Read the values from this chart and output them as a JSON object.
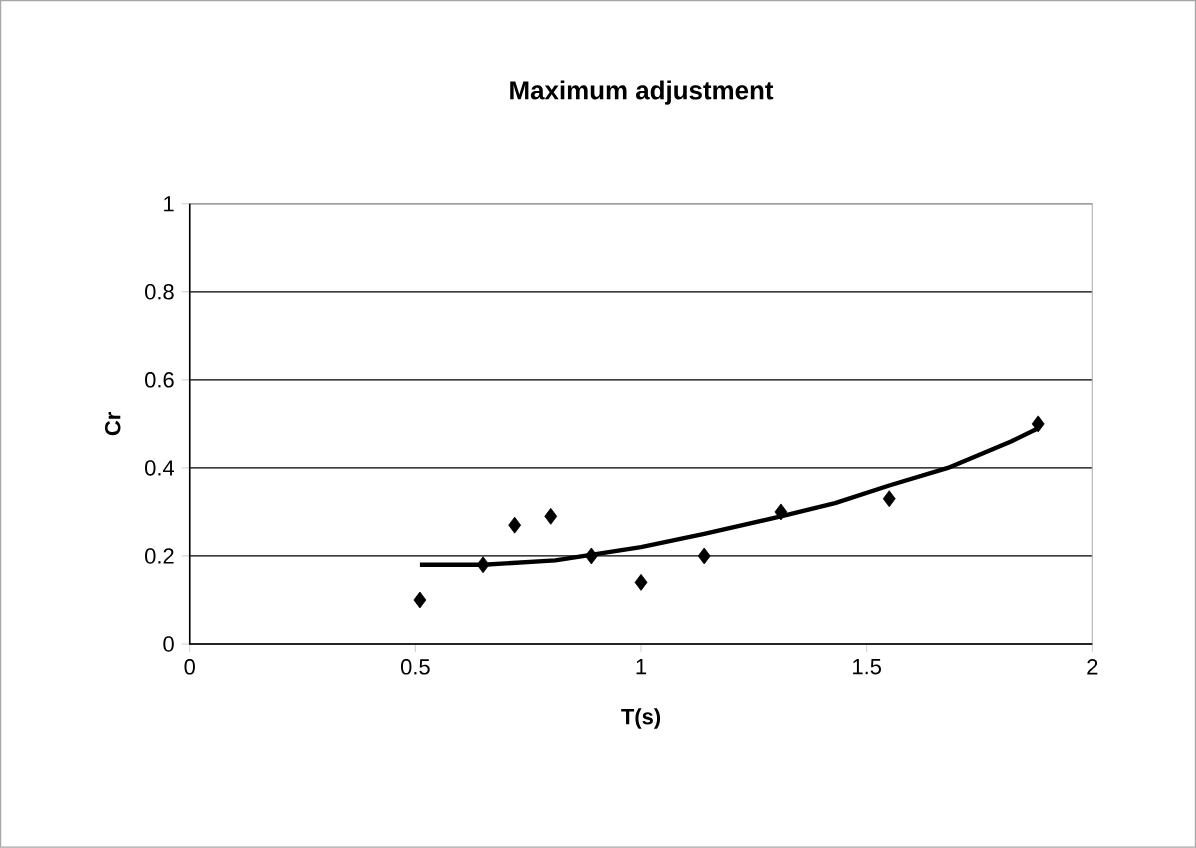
{
  "chart_data": {
    "type": "scatter",
    "title": "Maximum adjustment",
    "xlabel": "T(s)",
    "ylabel": "Cr",
    "xlim": [
      0,
      2
    ],
    "xticks": [
      0,
      0.5,
      1,
      1.5,
      2
    ],
    "ylim": [
      0,
      1
    ],
    "yticks": [
      0,
      0.2,
      0.4,
      0.6,
      0.8,
      1
    ],
    "grid": "y",
    "series": [
      {
        "marker": "diamond",
        "color": "#000000",
        "x": [
          0.51,
          0.65,
          0.72,
          0.8,
          0.89,
          1.0,
          1.14,
          1.31,
          1.55,
          1.88
        ],
        "values": [
          0.1,
          0.18,
          0.27,
          0.29,
          0.2,
          0.14,
          0.2,
          0.3,
          0.33,
          0.5
        ]
      },
      {
        "type": "line",
        "marker": "none",
        "color": "#000000",
        "x": [
          0.51,
          0.65,
          0.81,
          1.0,
          1.14,
          1.31,
          1.43,
          1.55,
          1.68,
          1.82,
          1.88
        ],
        "values": [
          0.18,
          0.18,
          0.19,
          0.22,
          0.25,
          0.29,
          0.32,
          0.36,
          0.4,
          0.46,
          0.49
        ]
      }
    ]
  }
}
